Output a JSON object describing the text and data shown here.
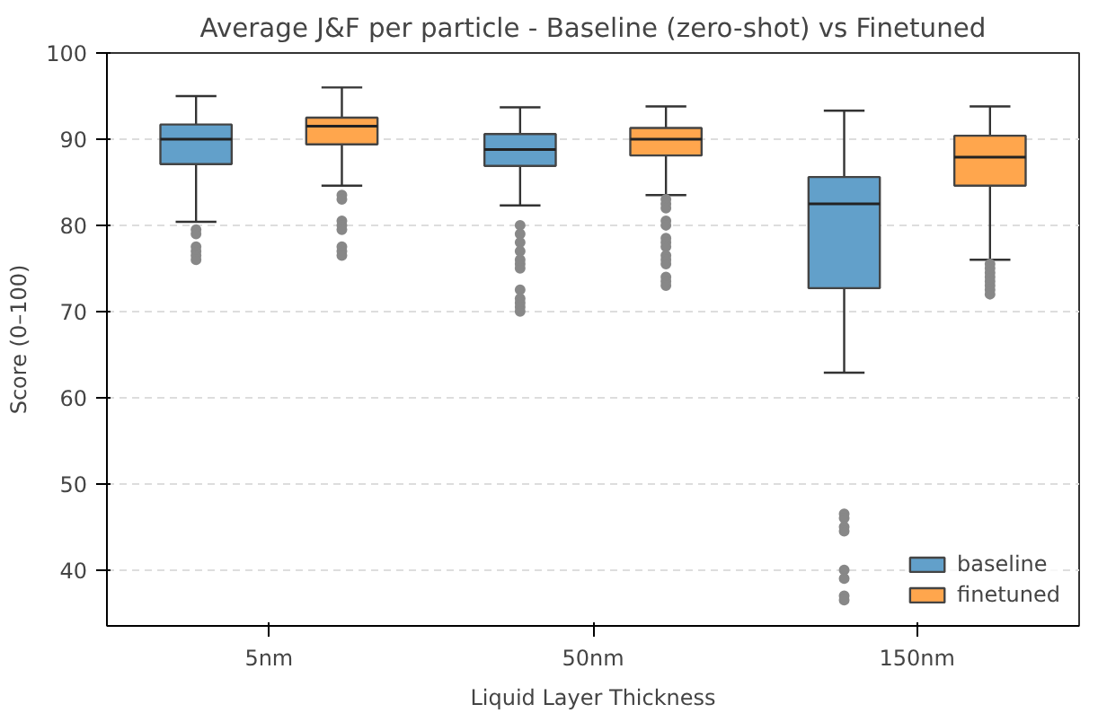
{
  "chart_data": {
    "type": "box",
    "title": "Average J&F per particle - Baseline (zero-shot) vs Finetuned",
    "xlabel": "Liquid Layer Thickness",
    "ylabel": "Score (0–100)",
    "categories": [
      "5nm",
      "50nm",
      "150nm"
    ],
    "ylim": [
      33.5,
      100
    ],
    "yticks": [
      40,
      50,
      60,
      70,
      80,
      90,
      100
    ],
    "grid": "y",
    "legend": "bottom right",
    "series": [
      {
        "name": "baseline",
        "color": "#62a0ca",
        "boxes": [
          {
            "low": 80.4,
            "q1": 87.1,
            "median": 90.0,
            "q3": 91.7,
            "high": 95.0,
            "outliers": [
              79.5,
              79,
              77.5,
              77,
              76.5,
              76
            ]
          },
          {
            "low": 82.3,
            "q1": 86.9,
            "median": 88.8,
            "q3": 90.6,
            "high": 93.7,
            "outliers": [
              80,
              79,
              78,
              77,
              76,
              75.5,
              75,
              72.5,
              71.5,
              71,
              70.5,
              70
            ]
          },
          {
            "low": 62.9,
            "q1": 72.7,
            "median": 82.5,
            "q3": 85.6,
            "high": 93.3,
            "outliers": [
              46.5,
              46,
              45,
              44.5,
              40,
              39,
              37,
              36.5
            ]
          }
        ]
      },
      {
        "name": "finetuned",
        "color": "#ffa64d",
        "boxes": [
          {
            "low": 84.6,
            "q1": 89.4,
            "median": 91.5,
            "q3": 92.5,
            "high": 96.0,
            "outliers": [
              83.5,
              83,
              80.5,
              80,
              79.5,
              77.5,
              77,
              76.5
            ]
          },
          {
            "low": 83.5,
            "q1": 88.1,
            "median": 90.0,
            "q3": 91.3,
            "high": 93.8,
            "outliers": [
              83,
              82.5,
              82,
              80.5,
              80,
              78.5,
              78,
              77.5,
              76.5,
              76,
              75.5,
              74,
              73.5,
              73
            ]
          },
          {
            "low": 76.0,
            "q1": 84.6,
            "median": 87.9,
            "q3": 90.4,
            "high": 93.8,
            "outliers": [
              75.5,
              75,
              74.5,
              74,
              73.5,
              73,
              72.5,
              72
            ]
          }
        ]
      }
    ]
  }
}
